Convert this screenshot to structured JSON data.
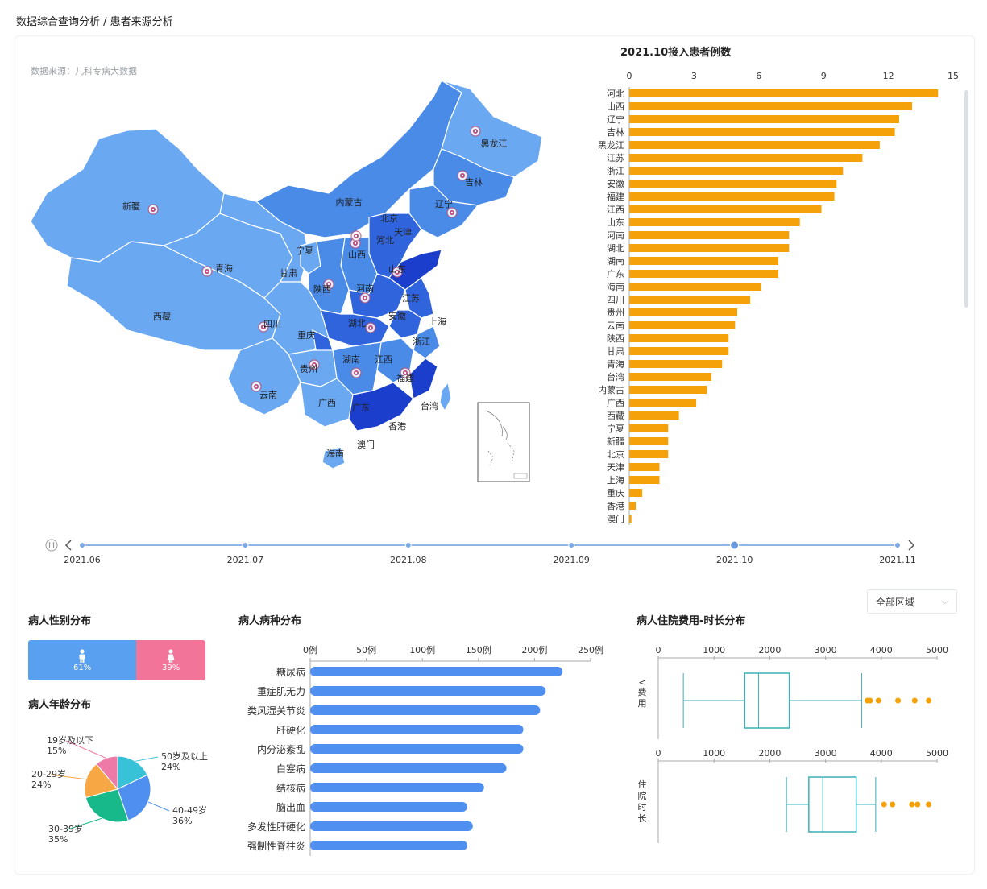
{
  "breadcrumb": "数据综合查询分析 / 患者来源分析",
  "source": "数据来源：儿科专病大数据",
  "map": {
    "labels": [
      {
        "name": "新疆",
        "pin": true
      },
      {
        "name": "西藏",
        "pin": false
      },
      {
        "name": "青海",
        "pin": true
      },
      {
        "name": "甘肃",
        "pin": false
      },
      {
        "name": "宁夏",
        "pin": false
      },
      {
        "name": "内蒙古",
        "pin": false
      },
      {
        "name": "黑龙江",
        "pin": true
      },
      {
        "name": "吉林",
        "pin": true
      },
      {
        "name": "辽宁",
        "pin": true
      },
      {
        "name": "北京",
        "pin": false
      },
      {
        "name": "天津",
        "pin": false
      },
      {
        "name": "河北",
        "pin": true
      },
      {
        "name": "山西",
        "pin": true
      },
      {
        "name": "陕西",
        "pin": true
      },
      {
        "name": "河南",
        "pin": true
      },
      {
        "name": "山东",
        "pin": true
      },
      {
        "name": "江苏",
        "pin": false
      },
      {
        "name": "安徽",
        "pin": false
      },
      {
        "name": "上海",
        "pin": false
      },
      {
        "name": "湖北",
        "pin": true
      },
      {
        "name": "四川",
        "pin": true
      },
      {
        "name": "重庆",
        "pin": false
      },
      {
        "name": "浙江",
        "pin": false
      },
      {
        "name": "贵州",
        "pin": true
      },
      {
        "name": "湖南",
        "pin": true
      },
      {
        "name": "江西",
        "pin": false
      },
      {
        "name": "福建",
        "pin": true
      },
      {
        "name": "云南",
        "pin": true
      },
      {
        "name": "广西",
        "pin": false
      },
      {
        "name": "广东",
        "pin": false
      },
      {
        "name": "台湾",
        "pin": false
      },
      {
        "name": "香港",
        "pin": false
      },
      {
        "name": "澳门",
        "pin": false
      },
      {
        "name": "海南",
        "pin": false
      }
    ],
    "colors": {
      "light": "#6aa8f2",
      "mid": "#4a8be8",
      "dark": "#2f64dc",
      "darkest": "#1b3fcc",
      "border": "#ffffff"
    }
  },
  "timeline": {
    "labels": [
      "2021.06",
      "2021.07",
      "2021.08",
      "2021.09",
      "2021.10",
      "2021.11"
    ],
    "selected": "2021.10"
  },
  "province_chart": {
    "title": "2021.10接入患者例数",
    "color": "#f5a20a",
    "axis_ticks": [
      "0",
      "3",
      "6",
      "9",
      "12",
      "15"
    ]
  },
  "chart_data": [
    {
      "type": "bar",
      "title": "2021.10接入患者例数",
      "orientation": "horizontal",
      "categories": [
        "河北",
        "山西",
        "辽宁",
        "吉林",
        "黑龙江",
        "江苏",
        "浙江",
        "安徽",
        "福建",
        "江西",
        "山东",
        "河南",
        "湖北",
        "湖南",
        "广东",
        "海南",
        "四川",
        "贵州",
        "云南",
        "陕西",
        "甘肃",
        "青海",
        "台湾",
        "内蒙古",
        "广西",
        "西藏",
        "宁夏",
        "新疆",
        "北京",
        "天津",
        "上海",
        "重庆",
        "香港",
        "澳门"
      ],
      "values": [
        14.3,
        13.1,
        12.5,
        12.3,
        11.6,
        10.8,
        9.9,
        9.6,
        9.5,
        8.9,
        7.9,
        7.4,
        7.4,
        6.9,
        6.9,
        6.1,
        5.6,
        5.0,
        4.9,
        4.6,
        4.6,
        4.3,
        3.8,
        3.6,
        3.1,
        2.3,
        1.8,
        1.8,
        1.8,
        1.4,
        1.4,
        0.6,
        0.3,
        0.1
      ],
      "xlim": [
        0,
        15
      ]
    },
    {
      "type": "bar",
      "title": "病人病种分布",
      "orientation": "horizontal",
      "categories": [
        "糖尿病",
        "重症肌无力",
        "类风湿关节炎",
        "肝硬化",
        "内分泌紊乱",
        "白塞病",
        "结核病",
        "脑出血",
        "多发性肝硬化",
        "强制性脊柱炎"
      ],
      "values": [
        225,
        210,
        205,
        190,
        190,
        175,
        155,
        140,
        145,
        140
      ],
      "xlim": [
        0,
        250
      ]
    },
    {
      "type": "pie",
      "title": "病人年龄分布",
      "categories": [
        "50岁及以上",
        "40-49岁",
        "30-39岁",
        "20-29岁",
        "19岁及以下"
      ],
      "values": [
        24,
        36,
        35,
        24,
        15
      ]
    },
    {
      "type": "box",
      "title": "病人住院费用-时长分布",
      "series": [
        {
          "name": "费用",
          "min": 450,
          "q1": 1550,
          "median": 1800,
          "q3": 2350,
          "max": 3650,
          "outliers": [
            3750,
            3800,
            3950,
            4300,
            4600,
            4850
          ]
        },
        {
          "name": "住院时长",
          "min": 2300,
          "q1": 2700,
          "median": 2950,
          "q3": 3550,
          "max": 3900,
          "outliers": [
            4050,
            4200,
            4550,
            4650,
            4850
          ]
        }
      ],
      "xlim": [
        0,
        5000
      ]
    }
  ],
  "region_select": {
    "value": "全部区域"
  },
  "gender": {
    "title": "病人性别分布",
    "male_pct": "61%",
    "female_pct": "39%",
    "male_share": 61,
    "colors": {
      "male": "#5aa0f0",
      "female": "#f27599"
    }
  },
  "age": {
    "title": "病人年龄分布",
    "slices": [
      {
        "label": "50岁及以上",
        "pct": "24%",
        "color": "#38c2d8"
      },
      {
        "label": "40-49岁",
        "pct": "36%",
        "color": "#4f8ff0"
      },
      {
        "label": "30-39岁",
        "pct": "35%",
        "color": "#17b98a"
      },
      {
        "label": "20-29岁",
        "pct": "24%",
        "color": "#f7a844"
      },
      {
        "label": "19岁及以下",
        "pct": "15%",
        "color": "#ee7aa8"
      }
    ]
  },
  "disease": {
    "title": "病人病种分布",
    "axis_ticks": [
      "0例",
      "50例",
      "100例",
      "150例",
      "200例",
      "250例"
    ],
    "color": "#4f8ff0"
  },
  "boxplot": {
    "title": "病人住院费用-时长分布",
    "axis_ticks": [
      "0",
      "1000",
      "2000",
      "3000",
      "4000",
      "5000"
    ],
    "ylabel_cost": "费用",
    "ylabel_days": "住院时长",
    "box_color": "#3bb0b8",
    "outlier_color": "#f5a20a",
    "y_marker": "<"
  }
}
